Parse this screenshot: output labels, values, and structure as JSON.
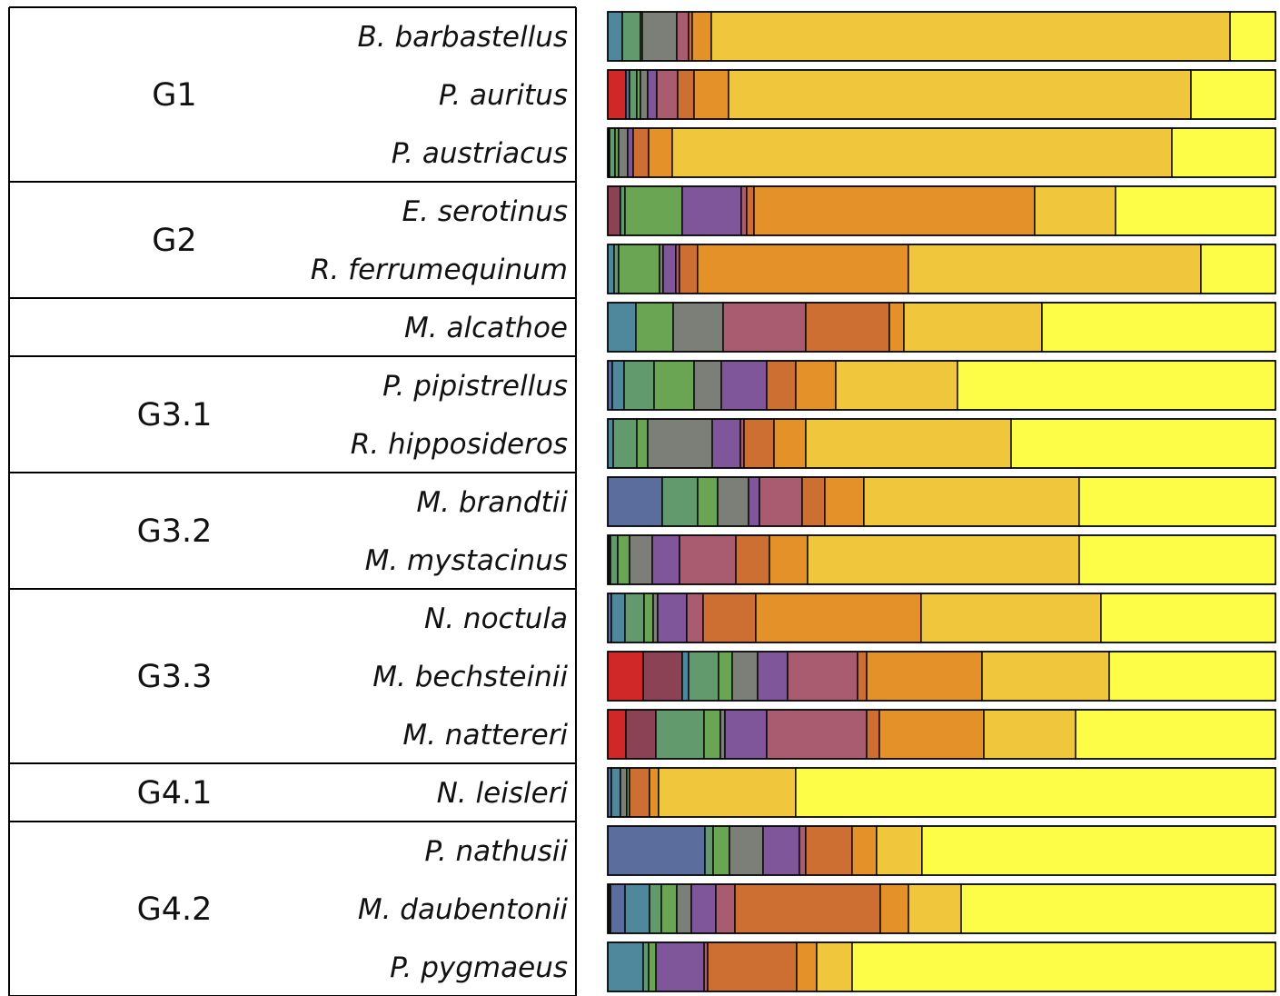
{
  "colors": {
    "c1": "#1a1a1a",
    "c2": "#d02828",
    "c3": "#8a4254",
    "c4": "#5a6d9c",
    "c5": "#4f889c",
    "c6": "#62996d",
    "c7": "#6aa553",
    "c8": "#7b7f78",
    "c9": "#80569a",
    "c10": "#a95c6f",
    "c11": "#cd6f33",
    "c12": "#e5912a",
    "c13": "#f0c63d",
    "c14": "#fdfd48"
  },
  "chart_data": {
    "type": "bar",
    "orientation": "horizontal",
    "stacked": true,
    "normalized": true,
    "xlim": [
      0,
      1
    ],
    "groups": [
      {
        "label": "G1",
        "species": [
          "B. barbastellus",
          "P. auritus",
          "P. austriacus"
        ]
      },
      {
        "label": "G2",
        "species": [
          "E. serotinus",
          "R. ferrumequinum"
        ]
      },
      {
        "label": "",
        "species": [
          "M. alcathoe"
        ]
      },
      {
        "label": "G3.1",
        "species": [
          "P. pipistrellus",
          "R. hipposideros"
        ]
      },
      {
        "label": "G3.2",
        "species": [
          "M. brandtii",
          "M. mystacinus"
        ]
      },
      {
        "label": "G3.3",
        "species": [
          "N. noctula",
          "M. bechsteinii",
          "M. nattereri"
        ]
      },
      {
        "label": "G4.1",
        "species": [
          "N. leisleri"
        ]
      },
      {
        "label": "G4.2",
        "species": [
          "P. nathusii",
          "M. daubentonii",
          "P. pygmaeus"
        ]
      }
    ],
    "bars": [
      {
        "label": "B. barbastellus",
        "segments": [
          {
            "color": "c5",
            "value": 0.0218
          },
          {
            "color": "c6",
            "value": 0.0272
          },
          {
            "color": "c7",
            "value": 0.0027
          },
          {
            "color": "c8",
            "value": 0.0517
          },
          {
            "color": "c10",
            "value": 0.0177
          },
          {
            "color": "c11",
            "value": 0.0054
          },
          {
            "color": "c12",
            "value": 0.0286
          },
          {
            "color": "c13",
            "value": 0.7769
          },
          {
            "color": "c14",
            "value": 0.068
          }
        ]
      },
      {
        "label": "P. auritus",
        "segments": [
          {
            "color": "c2",
            "value": 0.0272
          },
          {
            "color": "c4",
            "value": 0.0054
          },
          {
            "color": "c6",
            "value": 0.0109
          },
          {
            "color": "c7",
            "value": 0.0054
          },
          {
            "color": "c8",
            "value": 0.0109
          },
          {
            "color": "c9",
            "value": 0.0136
          },
          {
            "color": "c10",
            "value": 0.0313
          },
          {
            "color": "c11",
            "value": 0.0245
          },
          {
            "color": "c12",
            "value": 0.0517
          },
          {
            "color": "c13",
            "value": 0.6925
          },
          {
            "color": "c14",
            "value": 0.1265
          }
        ]
      },
      {
        "label": "P. austriacus",
        "segments": [
          {
            "color": "c1",
            "value": 0.0027
          },
          {
            "color": "c6",
            "value": 0.0082
          },
          {
            "color": "c7",
            "value": 0.0054
          },
          {
            "color": "c8",
            "value": 0.0136
          },
          {
            "color": "c9",
            "value": 0.0082
          },
          {
            "color": "c11",
            "value": 0.0231
          },
          {
            "color": "c12",
            "value": 0.0354
          },
          {
            "color": "c13",
            "value": 0.7483
          },
          {
            "color": "c14",
            "value": 0.1551
          }
        ]
      },
      {
        "label": "E. serotinus",
        "segments": [
          {
            "color": "c3",
            "value": 0.019
          },
          {
            "color": "c6",
            "value": 0.0068
          },
          {
            "color": "c7",
            "value": 0.0857
          },
          {
            "color": "c9",
            "value": 0.0884
          },
          {
            "color": "c10",
            "value": 0.0082
          },
          {
            "color": "c11",
            "value": 0.0109
          },
          {
            "color": "c12",
            "value": 0.4204
          },
          {
            "color": "c13",
            "value": 0.1211
          },
          {
            "color": "c14",
            "value": 0.2395
          }
        ]
      },
      {
        "label": "R. ferrumequinum",
        "segments": [
          {
            "color": "c5",
            "value": 0.0095
          },
          {
            "color": "c6",
            "value": 0.0068
          },
          {
            "color": "c7",
            "value": 0.0612
          },
          {
            "color": "c8",
            "value": 0.0054
          },
          {
            "color": "c9",
            "value": 0.019
          },
          {
            "color": "c10",
            "value": 0.0054
          },
          {
            "color": "c11",
            "value": 0.0272
          },
          {
            "color": "c12",
            "value": 0.3156
          },
          {
            "color": "c13",
            "value": 0.4381
          },
          {
            "color": "c14",
            "value": 0.1116
          }
        ]
      },
      {
        "label": "M. alcathoe",
        "segments": [
          {
            "color": "c5",
            "value": 0.0422
          },
          {
            "color": "c7",
            "value": 0.0558
          },
          {
            "color": "c8",
            "value": 0.0748
          },
          {
            "color": "c10",
            "value": 0.1238
          },
          {
            "color": "c11",
            "value": 0.1252
          },
          {
            "color": "c12",
            "value": 0.0218
          },
          {
            "color": "c13",
            "value": 0.2068
          },
          {
            "color": "c14",
            "value": 0.3497
          }
        ]
      },
      {
        "label": "P. pipistrellus",
        "segments": [
          {
            "color": "c4",
            "value": 0.0068
          },
          {
            "color": "c5",
            "value": 0.0177
          },
          {
            "color": "c6",
            "value": 0.0449
          },
          {
            "color": "c7",
            "value": 0.0599
          },
          {
            "color": "c8",
            "value": 0.0408
          },
          {
            "color": "c9",
            "value": 0.068
          },
          {
            "color": "c11",
            "value": 0.0435
          },
          {
            "color": "c12",
            "value": 0.0599
          },
          {
            "color": "c13",
            "value": 0.1823
          },
          {
            "color": "c14",
            "value": 0.4762
          }
        ]
      },
      {
        "label": "R. hipposideros",
        "segments": [
          {
            "color": "c5",
            "value": 0.0082
          },
          {
            "color": "c6",
            "value": 0.0354
          },
          {
            "color": "c7",
            "value": 0.0163
          },
          {
            "color": "c8",
            "value": 0.0966
          },
          {
            "color": "c9",
            "value": 0.0422
          },
          {
            "color": "c10",
            "value": 0.0054
          },
          {
            "color": "c11",
            "value": 0.0449
          },
          {
            "color": "c12",
            "value": 0.0476
          },
          {
            "color": "c13",
            "value": 0.3075
          },
          {
            "color": "c14",
            "value": 0.3959
          }
        ]
      },
      {
        "label": "M. brandtii",
        "segments": [
          {
            "color": "c4",
            "value": 0.0816
          },
          {
            "color": "c6",
            "value": 0.0531
          },
          {
            "color": "c7",
            "value": 0.0299
          },
          {
            "color": "c8",
            "value": 0.0463
          },
          {
            "color": "c9",
            "value": 0.0163
          },
          {
            "color": "c10",
            "value": 0.0639
          },
          {
            "color": "c11",
            "value": 0.034
          },
          {
            "color": "c12",
            "value": 0.0585
          },
          {
            "color": "c13",
            "value": 0.3224
          },
          {
            "color": "c14",
            "value": 0.294
          }
        ]
      },
      {
        "label": "M. mystacinus",
        "segments": [
          {
            "color": "c1",
            "value": 0.0041
          },
          {
            "color": "c6",
            "value": 0.0109
          },
          {
            "color": "c7",
            "value": 0.0177
          },
          {
            "color": "c8",
            "value": 0.034
          },
          {
            "color": "c9",
            "value": 0.0408
          },
          {
            "color": "c10",
            "value": 0.0844
          },
          {
            "color": "c11",
            "value": 0.0503
          },
          {
            "color": "c12",
            "value": 0.0571
          },
          {
            "color": "c13",
            "value": 0.4068
          },
          {
            "color": "c14",
            "value": 0.2939
          }
        ]
      },
      {
        "label": "N. noctula",
        "segments": [
          {
            "color": "c4",
            "value": 0.0054
          },
          {
            "color": "c5",
            "value": 0.0204
          },
          {
            "color": "c6",
            "value": 0.0286
          },
          {
            "color": "c7",
            "value": 0.0136
          },
          {
            "color": "c8",
            "value": 0.0068
          },
          {
            "color": "c9",
            "value": 0.0435
          },
          {
            "color": "c10",
            "value": 0.0245
          },
          {
            "color": "c11",
            "value": 0.0789
          },
          {
            "color": "c12",
            "value": 0.2476
          },
          {
            "color": "c13",
            "value": 0.2694
          },
          {
            "color": "c14",
            "value": 0.2613
          }
        ]
      },
      {
        "label": "M. bechsteinii",
        "segments": [
          {
            "color": "c2",
            "value": 0.0531
          },
          {
            "color": "c3",
            "value": 0.0585
          },
          {
            "color": "c5",
            "value": 0.0095
          },
          {
            "color": "c6",
            "value": 0.0449
          },
          {
            "color": "c7",
            "value": 0.0204
          },
          {
            "color": "c8",
            "value": 0.0381
          },
          {
            "color": "c9",
            "value": 0.0449
          },
          {
            "color": "c10",
            "value": 0.1048
          },
          {
            "color": "c11",
            "value": 0.0136
          },
          {
            "color": "c12",
            "value": 0.1728
          },
          {
            "color": "c13",
            "value": 0.1905
          },
          {
            "color": "c14",
            "value": 0.249
          }
        ]
      },
      {
        "label": "M. nattereri",
        "segments": [
          {
            "color": "c2",
            "value": 0.0272
          },
          {
            "color": "c3",
            "value": 0.0449
          },
          {
            "color": "c6",
            "value": 0.0721
          },
          {
            "color": "c7",
            "value": 0.0245
          },
          {
            "color": "c8",
            "value": 0.0068
          },
          {
            "color": "c9",
            "value": 0.0626
          },
          {
            "color": "c10",
            "value": 0.1497
          },
          {
            "color": "c11",
            "value": 0.019
          },
          {
            "color": "c12",
            "value": 0.1565
          },
          {
            "color": "c13",
            "value": 0.1374
          },
          {
            "color": "c14",
            "value": 0.2993
          }
        ]
      },
      {
        "label": "N. leisleri",
        "segments": [
          {
            "color": "c4",
            "value": 0.0054
          },
          {
            "color": "c5",
            "value": 0.0136
          },
          {
            "color": "c8",
            "value": 0.0095
          },
          {
            "color": "c7",
            "value": 0.0041
          },
          {
            "color": "c11",
            "value": 0.0299
          },
          {
            "color": "c12",
            "value": 0.0136
          },
          {
            "color": "c13",
            "value": 0.2054
          },
          {
            "color": "c14",
            "value": 0.7185
          }
        ]
      },
      {
        "label": "P. nathusii",
        "segments": [
          {
            "color": "c4",
            "value": 0.1456
          },
          {
            "color": "c6",
            "value": 0.0122
          },
          {
            "color": "c7",
            "value": 0.0245
          },
          {
            "color": "c8",
            "value": 0.0503
          },
          {
            "color": "c9",
            "value": 0.0544
          },
          {
            "color": "c10",
            "value": 0.0095
          },
          {
            "color": "c11",
            "value": 0.0694
          },
          {
            "color": "c12",
            "value": 0.0367
          },
          {
            "color": "c13",
            "value": 0.068
          },
          {
            "color": "c14",
            "value": 0.5294
          }
        ]
      },
      {
        "label": "M. daubentonii",
        "segments": [
          {
            "color": "c1",
            "value": 0.0041
          },
          {
            "color": "c4",
            "value": 0.0218
          },
          {
            "color": "c5",
            "value": 0.0367
          },
          {
            "color": "c6",
            "value": 0.0177
          },
          {
            "color": "c7",
            "value": 0.0231
          },
          {
            "color": "c8",
            "value": 0.0218
          },
          {
            "color": "c9",
            "value": 0.0367
          },
          {
            "color": "c10",
            "value": 0.0286
          },
          {
            "color": "c11",
            "value": 0.2177
          },
          {
            "color": "c12",
            "value": 0.0422
          },
          {
            "color": "c13",
            "value": 0.0789
          },
          {
            "color": "c14",
            "value": 0.4707
          }
        ]
      },
      {
        "label": "P. pygmaeus",
        "segments": [
          {
            "color": "c5",
            "value": 0.0531
          },
          {
            "color": "c6",
            "value": 0.0082
          },
          {
            "color": "c7",
            "value": 0.0109
          },
          {
            "color": "c9",
            "value": 0.0721
          },
          {
            "color": "c10",
            "value": 0.0054
          },
          {
            "color": "c11",
            "value": 0.1333
          },
          {
            "color": "c12",
            "value": 0.0299
          },
          {
            "color": "c13",
            "value": 0.0531
          },
          {
            "color": "c14",
            "value": 0.634
          }
        ]
      }
    ]
  }
}
